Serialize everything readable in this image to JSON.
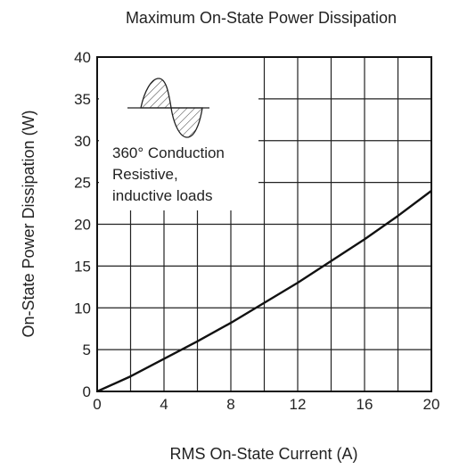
{
  "chart_data": {
    "type": "line",
    "title": "Maximum On-State Power Dissipation",
    "xlabel": "RMS On-State Current  (A)",
    "ylabel": "On-State Power Dissipation  (W)",
    "xlim": [
      0,
      20
    ],
    "ylim": [
      0,
      40
    ],
    "x_ticks": [
      0,
      4,
      8,
      12,
      16,
      20
    ],
    "y_ticks": [
      0,
      5,
      10,
      15,
      20,
      25,
      30,
      35,
      40
    ],
    "grid": true,
    "series": [
      {
        "x": [
          0,
          2,
          4,
          6,
          8,
          10,
          12,
          14,
          16,
          18,
          20
        ],
        "values": [
          0,
          1.8,
          3.9,
          6.0,
          8.2,
          10.6,
          13.0,
          15.6,
          18.2,
          21.0,
          24.0
        ],
        "color": "#111111"
      }
    ],
    "annotations": [
      "360° Conduction",
      "Resistive,",
      "inductive loads"
    ],
    "icon": "sine-wave-conduction-icon"
  }
}
